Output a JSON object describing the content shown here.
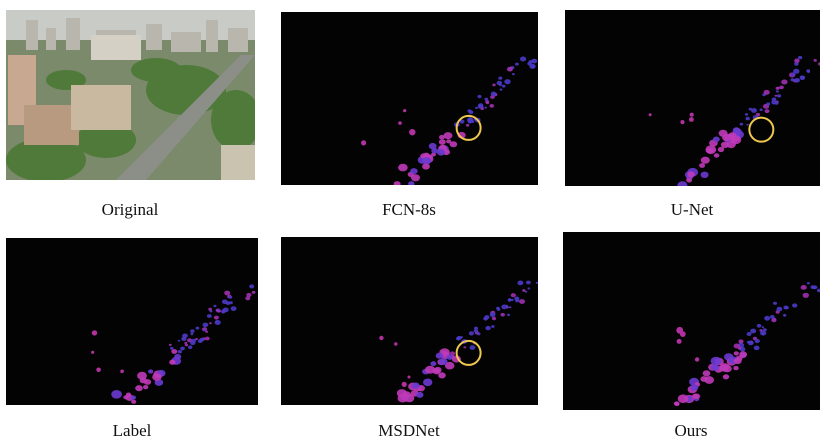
{
  "panels": [
    {
      "caption": "Original"
    },
    {
      "caption": "FCN-8s"
    },
    {
      "caption": "U-Net"
    },
    {
      "caption": "Label"
    },
    {
      "caption": "MSDNet"
    },
    {
      "caption": "Ours"
    }
  ]
}
